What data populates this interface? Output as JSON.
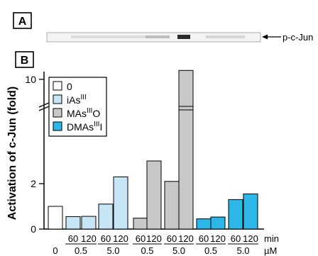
{
  "panels": {
    "a_label": "A",
    "b_label": "B"
  },
  "blot": {
    "band_label": "p-c-Jun"
  },
  "chart_data": {
    "type": "bar",
    "ylabel": "Activation of c-Jun (fold)",
    "y_axis": {
      "broken": true,
      "lower_ticks": [
        0,
        2
      ],
      "upper_ticks": [
        10
      ]
    },
    "legend": {
      "placement": "top-left",
      "entries": [
        {
          "name": "0",
          "color": "#ffffff"
        },
        {
          "name": "iAs",
          "sup": "III",
          "suffix": "",
          "color": "#c6e6f5"
        },
        {
          "name": "MAs",
          "sup": "III",
          "suffix": "O",
          "color": "#c8c8c8"
        },
        {
          "name": "DMAs",
          "sup": "III",
          "suffix": "I",
          "color": "#2db7e8"
        }
      ]
    },
    "bars": [
      {
        "series": "0",
        "conc": "0",
        "time": "",
        "value": 1.0
      },
      {
        "series": "iAs",
        "conc": "0.5",
        "time": "60",
        "value": 0.55
      },
      {
        "series": "iAs",
        "conc": "0.5",
        "time": "120",
        "value": 0.56
      },
      {
        "series": "iAs",
        "conc": "5.0",
        "time": "60",
        "value": 1.1
      },
      {
        "series": "iAs",
        "conc": "5.0",
        "time": "120",
        "value": 2.3
      },
      {
        "series": "MAs",
        "conc": "0.5",
        "time": "60",
        "value": 0.48
      },
      {
        "series": "MAs",
        "conc": "0.5",
        "time": "120",
        "value": 3.0
      },
      {
        "series": "MAs",
        "conc": "5.0",
        "time": "60",
        "value": 2.1
      },
      {
        "series": "MAs",
        "conc": "5.0",
        "time": "120",
        "value": 11.0
      },
      {
        "series": "DMAs",
        "conc": "0.5",
        "time": "60",
        "value": 0.45
      },
      {
        "series": "DMAs",
        "conc": "0.5",
        "time": "120",
        "value": 0.53
      },
      {
        "series": "DMAs",
        "conc": "5.0",
        "time": "60",
        "value": 1.3
      },
      {
        "series": "DMAs",
        "conc": "5.0",
        "time": "120",
        "value": 1.55
      }
    ],
    "x_row_time_unit": "min",
    "x_row_conc_unit": "µM",
    "control_conc_label": "0",
    "concentration_groups": [
      "0.5",
      "5.0",
      "0.5",
      "5.0",
      "0.5",
      "5.0"
    ]
  }
}
